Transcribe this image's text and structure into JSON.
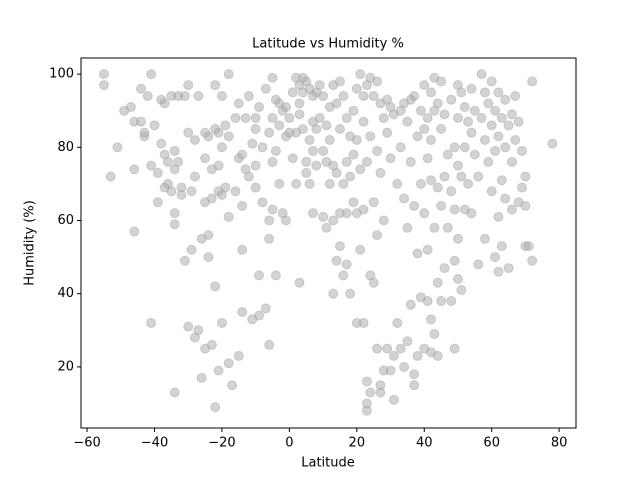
{
  "chart_data": {
    "type": "scatter",
    "title": "Latitude vs Humidity %",
    "x_label": "Latitude",
    "y_label": "Humidity (%)",
    "color": "#a8a8a8",
    "alpha": 0.5,
    "xlim": [
      -61.8,
      85
    ],
    "ylim": [
      3.3,
      104.4
    ],
    "xticks": [
      {
        "value": -60,
        "label": "−60"
      },
      {
        "value": -40,
        "label": "−40"
      },
      {
        "value": -20,
        "label": "−20"
      },
      0,
      20,
      40,
      60,
      80
    ],
    "yticks": [
      20,
      40,
      60,
      80,
      100
    ],
    "x": [
      -55,
      -55,
      -53,
      -51,
      -49,
      -47,
      -46,
      -46,
      -46,
      -44,
      -44,
      -43,
      -43,
      -42,
      -41,
      -41,
      -41,
      -40,
      -39,
      -39,
      -38,
      -38,
      -37,
      -37,
      -37,
      -36,
      -36,
      -35,
      -35,
      -34,
      -34,
      -34,
      -34,
      -34,
      -33,
      -33,
      -32,
      -32,
      -31,
      -31,
      -30,
      -30,
      -30,
      -29,
      -29,
      -28,
      -28,
      -28,
      -27,
      -27,
      -26,
      -26,
      -25,
      -25,
      -25,
      -25,
      -24,
      -24,
      -24,
      -23,
      -23,
      -23,
      -22,
      -22,
      -22,
      -22,
      -21,
      -21,
      -21,
      -21,
      -20,
      -20,
      -20,
      -20,
      -19,
      -19,
      -18,
      -18,
      -18,
      -18,
      -17,
      -16,
      -16,
      -15,
      -15,
      -15,
      -14,
      -14,
      -14,
      -14,
      -13,
      -13,
      -12,
      -12,
      -11,
      -11,
      -10,
      -10,
      -10,
      -10,
      -9,
      -9,
      -9,
      -8,
      -8,
      -7,
      -7,
      -6,
      -6,
      -6,
      -6,
      -5,
      -5,
      -5,
      -5,
      -4,
      -4,
      -4,
      -3,
      -3,
      -3,
      -2,
      -2,
      -1,
      -1,
      -1,
      0,
      0,
      1,
      1,
      2,
      2,
      2,
      3,
      3,
      3,
      3,
      4,
      4,
      4,
      5,
      5,
      5,
      6,
      6,
      6,
      7,
      7,
      7,
      7,
      8,
      8,
      8,
      9,
      9,
      10,
      10,
      10,
      11,
      11,
      11,
      12,
      12,
      12,
      13,
      13,
      13,
      13,
      14,
      14,
      14,
      15,
      15,
      15,
      15,
      16,
      16,
      16,
      17,
      17,
      17,
      17,
      18,
      18,
      18,
      19,
      19,
      19,
      20,
      20,
      20,
      20,
      21,
      21,
      21,
      22,
      22,
      22,
      22,
      23,
      23,
      23,
      23,
      23,
      24,
      24,
      24,
      24,
      25,
      25,
      25,
      26,
      26,
      26,
      26,
      27,
      27,
      27,
      27,
      28,
      28,
      28,
      29,
      29,
      29,
      30,
      30,
      30,
      31,
      31,
      31,
      32,
      32,
      33,
      33,
      33,
      34,
      34,
      34,
      35,
      35,
      35,
      36,
      36,
      36,
      37,
      37,
      37,
      37,
      38,
      38,
      38,
      39,
      39,
      39,
      40,
      40,
      40,
      40,
      41,
      41,
      41,
      41,
      42,
      42,
      42,
      42,
      42,
      43,
      43,
      43,
      43,
      44,
      44,
      44,
      44,
      45,
      45,
      45,
      45,
      46,
      46,
      46,
      47,
      47,
      48,
      48,
      48,
      49,
      49,
      49,
      49,
      50,
      50,
      50,
      50,
      50,
      51,
      51,
      51,
      52,
      52,
      52,
      53,
      53,
      54,
      54,
      54,
      55,
      55,
      56,
      56,
      57,
      57,
      58,
      58,
      58,
      59,
      59,
      60,
      60,
      60,
      61,
      61,
      61,
      62,
      62,
      62,
      62,
      63,
      63,
      63,
      64,
      64,
      64,
      65,
      65,
      66,
      66,
      66,
      67,
      67,
      68,
      68,
      69,
      69,
      70,
      70,
      70,
      71,
      72,
      72,
      78
    ],
    "values": [
      100,
      97,
      72,
      80,
      90,
      91,
      87,
      74,
      57,
      96,
      87,
      84,
      83,
      94,
      100,
      75,
      32,
      86,
      65,
      73,
      93,
      81,
      92,
      78,
      69,
      76,
      70,
      94,
      68,
      79,
      74,
      62,
      59,
      13,
      94,
      76,
      69,
      67,
      49,
      94,
      97,
      84,
      31,
      52,
      68,
      28,
      82,
      72,
      30,
      94,
      55,
      17,
      84,
      77,
      65,
      25,
      50,
      56,
      83,
      74,
      66,
      26,
      97,
      85,
      42,
      9,
      84,
      75,
      68,
      19,
      94,
      80,
      67,
      32,
      86,
      69,
      100,
      83,
      61,
      21,
      15,
      88,
      68,
      92,
      77,
      23,
      78,
      64,
      52,
      35,
      88,
      74,
      94,
      72,
      81,
      33,
      88,
      85,
      75,
      69,
      91,
      45,
      34,
      80,
      65,
      96,
      36,
      84,
      60,
      55,
      26,
      99,
      88,
      76,
      63,
      93,
      79,
      45,
      92,
      86,
      70,
      90,
      62,
      91,
      83,
      60,
      88,
      84,
      95,
      77,
      99,
      84,
      70,
      97,
      92,
      89,
      43,
      99,
      95,
      85,
      98,
      73,
      76,
      96,
      82,
      70,
      94,
      87,
      79,
      62,
      95,
      85,
      75,
      97,
      88,
      94,
      79,
      61,
      86,
      76,
      58,
      91,
      82,
      70,
      97,
      75,
      60,
      40,
      92,
      73,
      49,
      98,
      85,
      62,
      53,
      94,
      70,
      45,
      88,
      76,
      62,
      48,
      83,
      72,
      40,
      90,
      78,
      65,
      96,
      82,
      62,
      32,
      100,
      74,
      52,
      94,
      87,
      63,
      32,
      97,
      76,
      16,
      10,
      8,
      99,
      83,
      45,
      13,
      94,
      65,
      43,
      98,
      79,
      56,
      25,
      92,
      73,
      15,
      13,
      88,
      60,
      19,
      93,
      84,
      25,
      91,
      77,
      19,
      89,
      23,
      11,
      70,
      32,
      90,
      80,
      25,
      92,
      66,
      20,
      87,
      58,
      27,
      93,
      76,
      37,
      94,
      64,
      18,
      15,
      83,
      51,
      23,
      90,
      70,
      39,
      97,
      85,
      62,
      25,
      88,
      77,
      52,
      38,
      95,
      82,
      71,
      33,
      24,
      99,
      90,
      58,
      29,
      92,
      69,
      43,
      23,
      98,
      85,
      64,
      38,
      89,
      72,
      47,
      78,
      58,
      93,
      68,
      38,
      80,
      63,
      49,
      25,
      97,
      88,
      75,
      55,
      44,
      95,
      72,
      41,
      91,
      80,
      63,
      87,
      70,
      96,
      84,
      62,
      90,
      78,
      72,
      48,
      100,
      88,
      95,
      82,
      55,
      92,
      76,
      98,
      86,
      68,
      90,
      79,
      50,
      95,
      83,
      61,
      46,
      88,
      71,
      53,
      93,
      80,
      66,
      86,
      47,
      89,
      76,
      63,
      94,
      82,
      87,
      65,
      79,
      69,
      72,
      64,
      53,
      53,
      98,
      49,
      81
    ]
  }
}
